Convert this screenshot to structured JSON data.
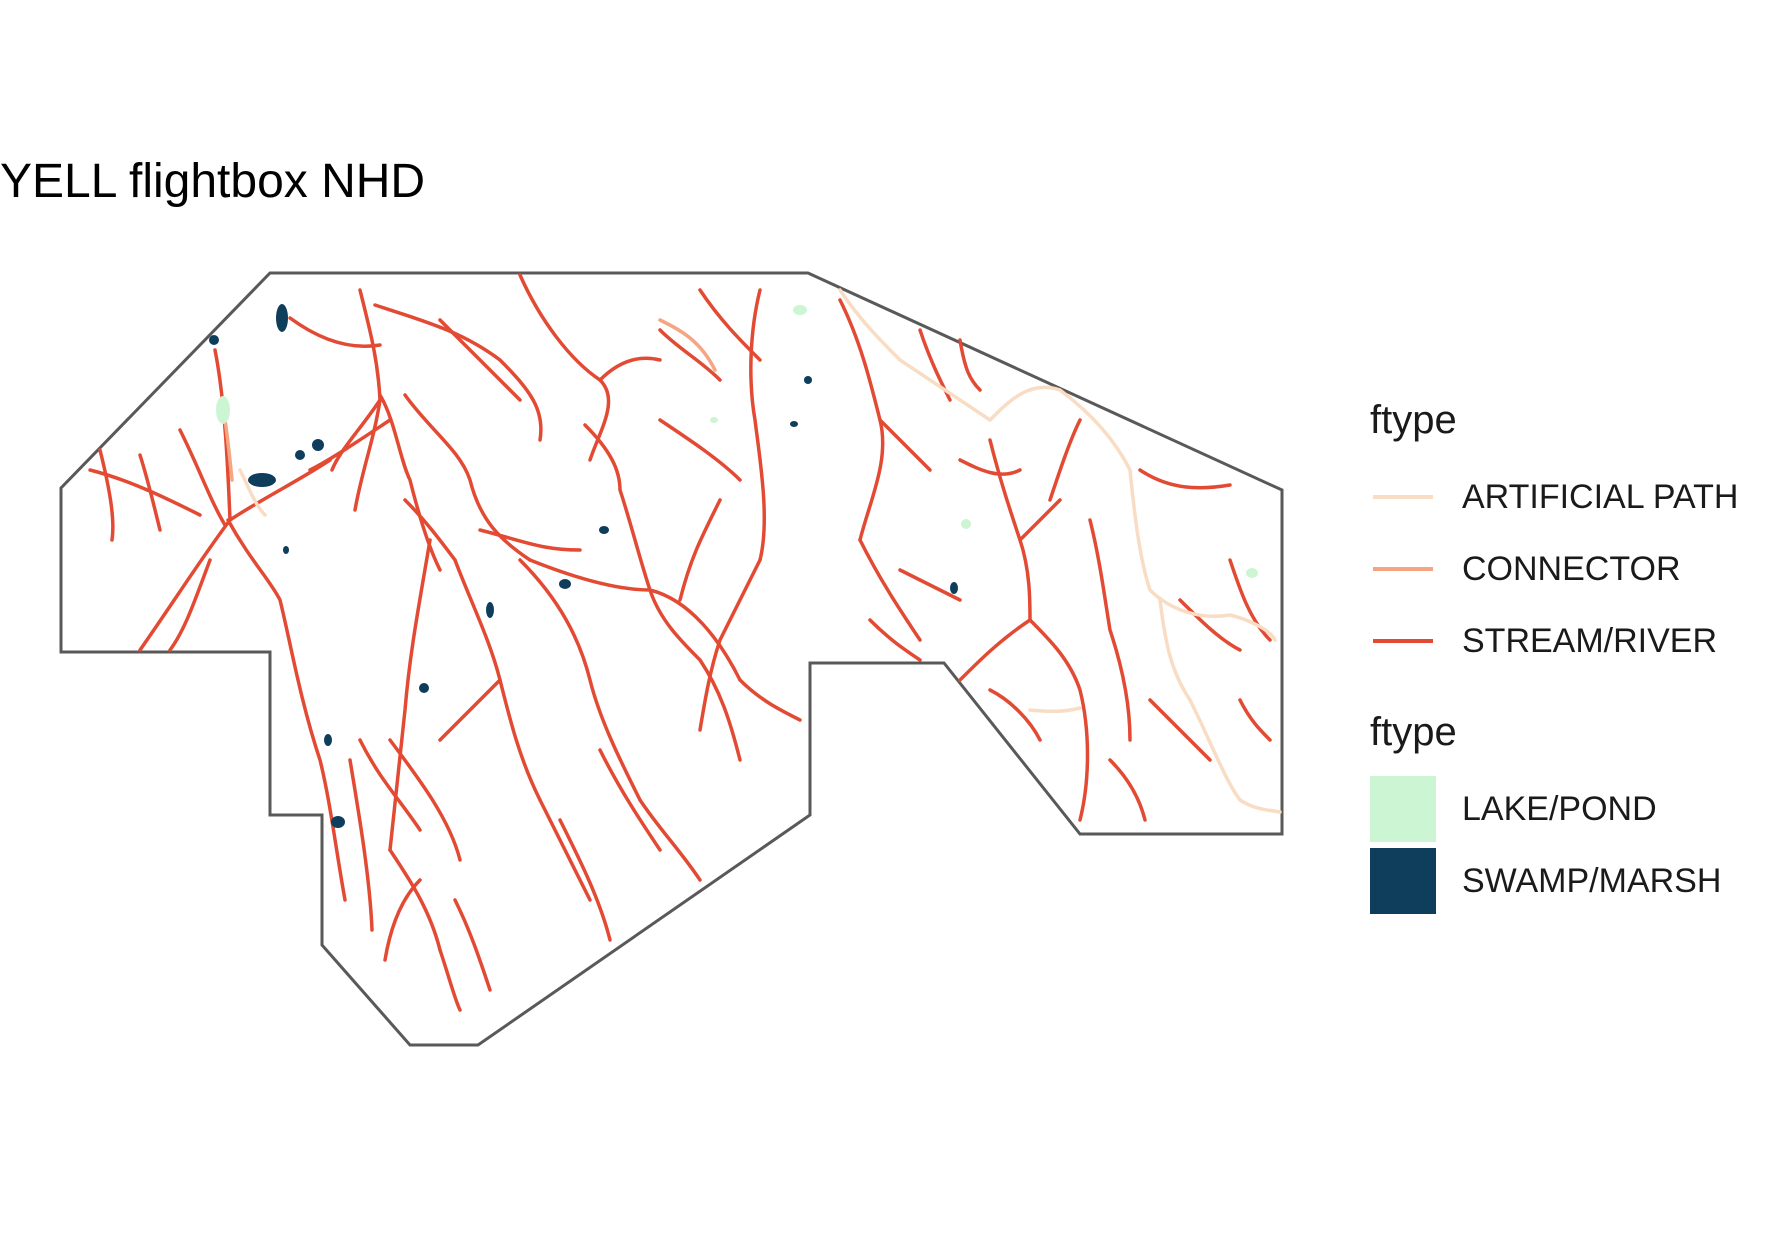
{
  "title": "YELL flightbox NHD",
  "flowline_legend": {
    "title": "ftype",
    "items": [
      {
        "label": "ARTIFICIAL PATH",
        "color": "#f9dcc4"
      },
      {
        "label": "CONNECTOR",
        "color": "#f4a582"
      },
      {
        "label": "STREAM/RIVER",
        "color": "#e34a33"
      }
    ]
  },
  "waterbody_legend": {
    "title": "ftype",
    "items": [
      {
        "label": "LAKE/POND",
        "color": "#ccf5d3"
      },
      {
        "label": "SWAMP/MARSH",
        "color": "#0f3d5c"
      }
    ]
  },
  "boundary_color": "#595959"
}
